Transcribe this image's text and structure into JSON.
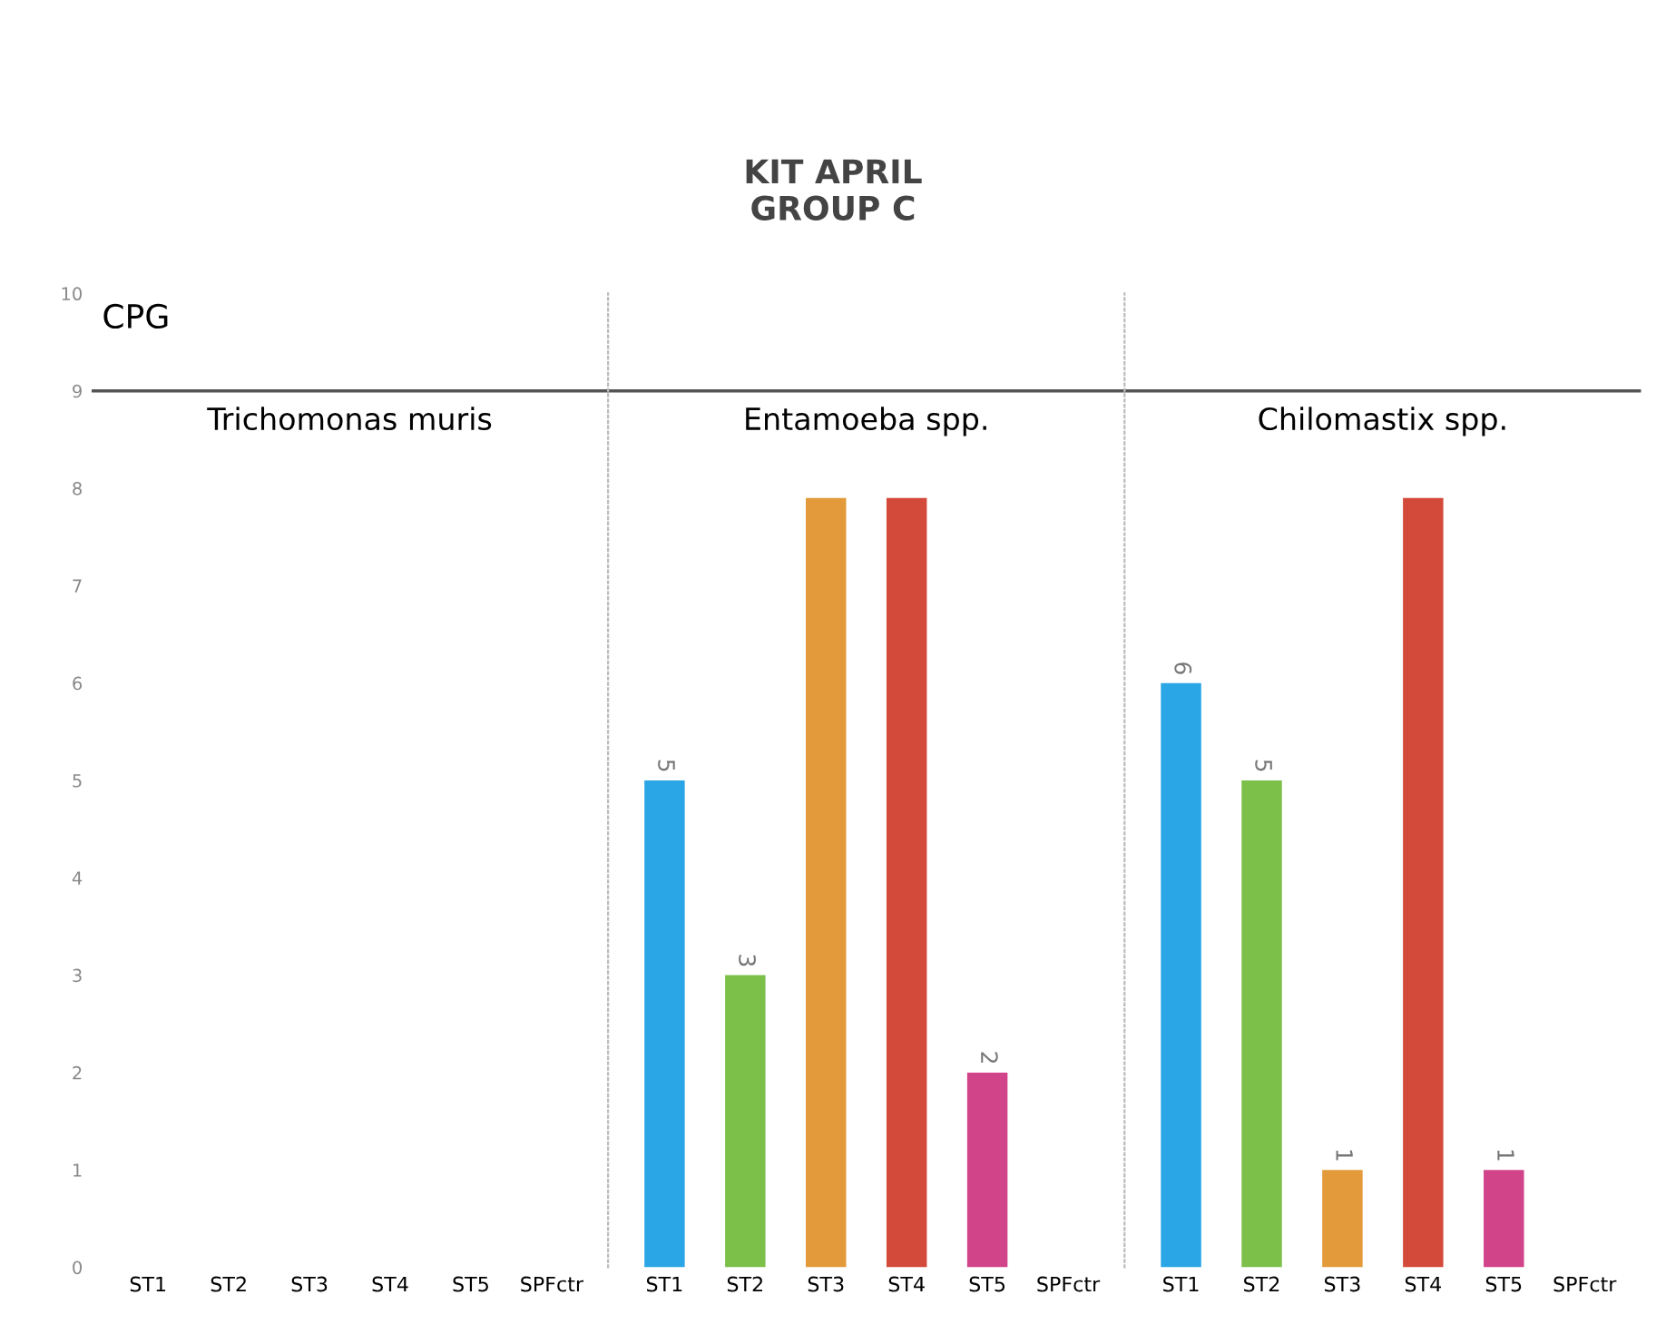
{
  "chart_data": [
    {
      "type": "bar",
      "title": "Trichomonas muris",
      "ylabel": "CPG",
      "annotations": [
        "KIT APRIL\nGROUP C"
      ],
      "categories": [
        "ST1",
        "ST2",
        "ST3",
        "ST4",
        "ST5",
        "SPFctr"
      ],
      "values": [
        0,
        0,
        0,
        0,
        0,
        0
      ],
      "colors": [
        "#2aa6e6",
        "#7cc04a",
        "#e39a3a",
        "#d44a3a",
        "#d2448a",
        "#888888"
      ],
      "ylim": [
        0,
        10
      ],
      "yticks": [
        0,
        1,
        2,
        3,
        4,
        5,
        6,
        7,
        8,
        9,
        10
      ],
      "ref_lines": [
        {
          "axis": "y",
          "value": 9,
          "color": "#555555"
        }
      ]
    },
    {
      "type": "bar",
      "title": "Entamoeba spp.",
      "categories": [
        "ST1",
        "ST2",
        "ST3",
        "ST4",
        "ST5",
        "SPFctr"
      ],
      "values": [
        5,
        3,
        7.9,
        7.9,
        2,
        0
      ],
      "value_labels": [
        "5",
        "3",
        null,
        null,
        "2",
        null
      ],
      "colors": [
        "#2aa6e6",
        "#7cc04a",
        "#e39a3a",
        "#d44a3a",
        "#d2448a",
        "#888888"
      ],
      "ylim": [
        0,
        10
      ],
      "yticks": [
        0,
        1,
        2,
        3,
        4,
        5,
        6,
        7,
        8,
        9,
        10
      ],
      "tick_labels": "x",
      "ref_lines": [
        {
          "axis": "y",
          "value": 9,
          "color": "#555555"
        }
      ]
    },
    {
      "type": "bar",
      "title": "Chilomastix spp.",
      "categories": [
        "ST1",
        "ST2",
        "ST3",
        "ST4",
        "ST5",
        "SPFctr"
      ],
      "values": [
        6,
        5,
        1,
        7.9,
        1,
        0
      ],
      "value_labels": [
        "6",
        "5",
        "1",
        null,
        "1",
        null
      ],
      "colors": [
        "#2aa6e6",
        "#7cc04a",
        "#e39a3a",
        "#d44a3a",
        "#d2448a",
        "#888888"
      ],
      "ylim": [
        0,
        10
      ],
      "yticks": [
        0,
        1,
        2,
        3,
        4,
        5,
        6,
        7,
        8,
        9,
        10
      ],
      "tick_labels": "x",
      "ref_lines": [
        {
          "axis": "y",
          "value": 9,
          "color": "#555555"
        }
      ]
    }
  ]
}
